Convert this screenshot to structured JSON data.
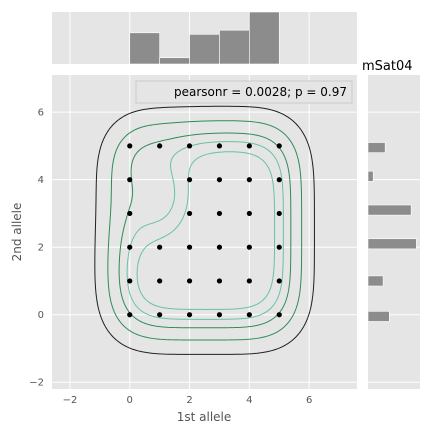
{
  "chart_data": {
    "type": "scatter",
    "title": "mSat04",
    "xlabel": "1st allele",
    "ylabel": "2nd allele",
    "xlim": [
      -2.6,
      7.6
    ],
    "ylim": [
      -2.2,
      7.1
    ],
    "xticks": [
      -2,
      0,
      2,
      4,
      6
    ],
    "yticks": [
      -2,
      0,
      2,
      4,
      6
    ],
    "annotation": "pearsonr = 0.0028; p = 0.97",
    "legend_position": "top-right",
    "grid": true,
    "background": "#e5e5e5",
    "point_color": "#000000",
    "bar_color": "#8c8c8c",
    "contour_colors": [
      "#1f1f1f",
      "#2e8b57",
      "#66c2a4"
    ],
    "points": [
      [
        0,
        5
      ],
      [
        1,
        5
      ],
      [
        2,
        5
      ],
      [
        3,
        5
      ],
      [
        4,
        5
      ],
      [
        5,
        5
      ],
      [
        0,
        4
      ],
      [
        2,
        4
      ],
      [
        3,
        4
      ],
      [
        4,
        4
      ],
      [
        5,
        4
      ],
      [
        0,
        3
      ],
      [
        2,
        3
      ],
      [
        3,
        3
      ],
      [
        4,
        3
      ],
      [
        5,
        3
      ],
      [
        0,
        2
      ],
      [
        1,
        2
      ],
      [
        2,
        2
      ],
      [
        3,
        2
      ],
      [
        4,
        2
      ],
      [
        5,
        2
      ],
      [
        0,
        1
      ],
      [
        1,
        1
      ],
      [
        2,
        1
      ],
      [
        3,
        1
      ],
      [
        4,
        1
      ],
      [
        5,
        1
      ],
      [
        0,
        0
      ],
      [
        1,
        0
      ],
      [
        2,
        0
      ],
      [
        3,
        0
      ],
      [
        4,
        0
      ],
      [
        5,
        0
      ]
    ],
    "marginal_x": {
      "bins": [
        [
          0,
          1
        ],
        [
          1,
          2
        ],
        [
          2,
          3
        ],
        [
          3,
          4
        ],
        [
          4,
          5
        ]
      ],
      "heights": [
        0.6,
        0.12,
        0.57,
        0.65,
        1.0
      ]
    },
    "marginal_y": {
      "bins": [
        [
          -0.2,
          0.1
        ],
        [
          0.85,
          1.15
        ],
        [
          1.95,
          2.25
        ],
        [
          2.95,
          3.25
        ],
        [
          3.95,
          4.25
        ],
        [
          4.8,
          5.1
        ]
      ],
      "widths": [
        0.41,
        0.29,
        0.93,
        0.83,
        0.1,
        0.33
      ]
    }
  }
}
